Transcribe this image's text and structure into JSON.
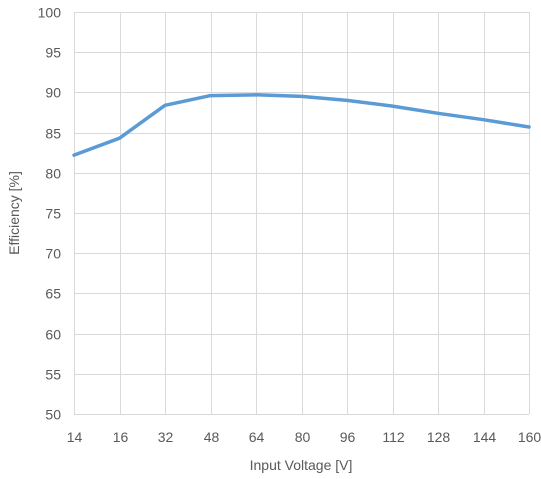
{
  "chart_data": {
    "type": "line",
    "categories": [
      "14",
      "16",
      "32",
      "48",
      "64",
      "80",
      "96",
      "112",
      "128",
      "144",
      "160"
    ],
    "series": [
      {
        "values": [
          82.2,
          84.3,
          88.4,
          89.6,
          89.7,
          89.5,
          89.0,
          88.3,
          87.4,
          86.6,
          85.7
        ],
        "color": "#5b9bd5"
      }
    ],
    "title": "",
    "xlabel": "Input Voltage [V]",
    "ylabel": "Efficiency [%]",
    "ylim": [
      50,
      100
    ],
    "yticks": [
      50,
      55,
      60,
      65,
      70,
      75,
      80,
      85,
      90,
      95,
      100
    ],
    "grid": true,
    "gridColor": "#d9d9d9",
    "legend": "none"
  }
}
